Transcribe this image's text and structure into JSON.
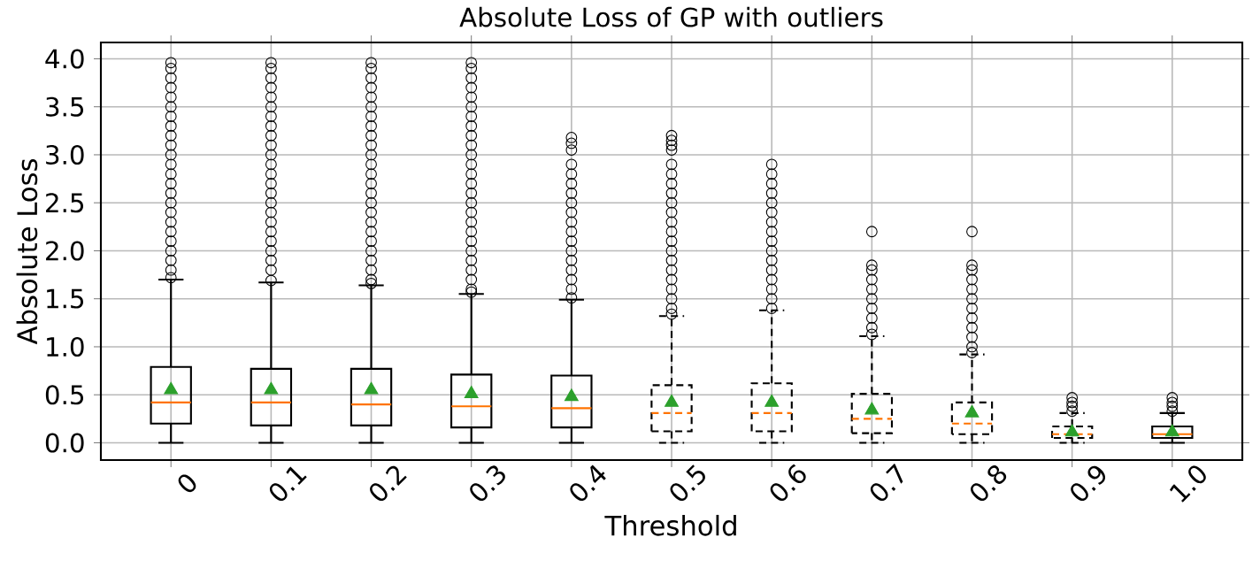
{
  "chart_data": {
    "type": "box",
    "title": "Absolute Loss of  GP with outliers",
    "xlabel": "Threshold",
    "ylabel": "Absolute  Loss",
    "categories": [
      "0",
      "0.1",
      "0.2",
      "0.3",
      "0.4",
      "0.5",
      "0.6",
      "0.7",
      "0.8",
      "0.9",
      "1.0"
    ],
    "boxes": [
      {
        "low": 0,
        "q1": 0.2,
        "median": 0.42,
        "q3": 0.79,
        "high": 1.7,
        "mean": 0.55,
        "outliers": [
          1.72,
          1.8,
          1.9,
          2.0,
          2.1,
          2.2,
          2.3,
          2.4,
          2.5,
          2.6,
          2.7,
          2.8,
          2.9,
          3.0,
          3.1,
          3.2,
          3.3,
          3.4,
          3.5,
          3.6,
          3.7,
          3.8,
          3.9,
          3.96
        ]
      },
      {
        "low": 0,
        "q1": 0.18,
        "median": 0.42,
        "q3": 0.77,
        "high": 1.67,
        "mean": 0.55,
        "outliers": [
          1.69,
          1.8,
          1.9,
          2.0,
          2.1,
          2.2,
          2.3,
          2.4,
          2.5,
          2.6,
          2.7,
          2.8,
          2.9,
          3.0,
          3.1,
          3.2,
          3.3,
          3.4,
          3.5,
          3.6,
          3.7,
          3.8,
          3.9,
          3.96
        ]
      },
      {
        "low": 0,
        "q1": 0.18,
        "median": 0.4,
        "q3": 0.77,
        "high": 1.64,
        "mean": 0.55,
        "outliers": [
          1.66,
          1.7,
          1.8,
          1.9,
          2.0,
          2.1,
          2.2,
          2.3,
          2.4,
          2.5,
          2.6,
          2.7,
          2.8,
          2.9,
          3.0,
          3.1,
          3.2,
          3.3,
          3.4,
          3.5,
          3.6,
          3.7,
          3.8,
          3.9,
          3.96
        ]
      },
      {
        "low": 0,
        "q1": 0.16,
        "median": 0.38,
        "q3": 0.71,
        "high": 1.55,
        "mean": 0.51,
        "outliers": [
          1.57,
          1.6,
          1.7,
          1.8,
          1.9,
          2.0,
          2.1,
          2.2,
          2.3,
          2.4,
          2.5,
          2.6,
          2.7,
          2.8,
          2.9,
          3.0,
          3.1,
          3.2,
          3.3,
          3.4,
          3.5,
          3.6,
          3.7,
          3.8,
          3.9,
          3.96
        ]
      },
      {
        "low": 0,
        "q1": 0.16,
        "median": 0.36,
        "q3": 0.7,
        "high": 1.49,
        "mean": 0.48,
        "outliers": [
          1.51,
          1.6,
          1.7,
          1.8,
          1.9,
          2.0,
          2.1,
          2.2,
          2.3,
          2.4,
          2.5,
          2.6,
          2.7,
          2.8,
          2.9,
          3.05,
          3.12,
          3.18
        ]
      },
      {
        "low": 0,
        "q1": 0.12,
        "median": 0.31,
        "q3": 0.6,
        "high": 1.32,
        "mean": 0.42,
        "outliers": [
          1.34,
          1.4,
          1.5,
          1.6,
          1.7,
          1.8,
          1.9,
          2.0,
          2.1,
          2.2,
          2.3,
          2.4,
          2.5,
          2.6,
          2.7,
          2.8,
          2.9,
          3.05,
          3.1,
          3.15,
          3.2
        ]
      },
      {
        "low": 0,
        "q1": 0.12,
        "median": 0.31,
        "q3": 0.62,
        "high": 1.38,
        "mean": 0.42,
        "outliers": [
          1.4,
          1.5,
          1.6,
          1.7,
          1.8,
          1.9,
          2.0,
          2.1,
          2.2,
          2.3,
          2.4,
          2.5,
          2.6,
          2.7,
          2.8,
          2.9
        ]
      },
      {
        "low": 0,
        "q1": 0.1,
        "median": 0.25,
        "q3": 0.51,
        "high": 1.11,
        "mean": 0.34,
        "outliers": [
          1.13,
          1.2,
          1.3,
          1.4,
          1.5,
          1.6,
          1.7,
          1.8,
          1.85,
          2.2
        ]
      },
      {
        "low": 0,
        "q1": 0.09,
        "median": 0.2,
        "q3": 0.42,
        "high": 0.92,
        "mean": 0.31,
        "outliers": [
          0.94,
          1.0,
          1.1,
          1.2,
          1.3,
          1.4,
          1.5,
          1.6,
          1.7,
          1.8,
          1.85,
          2.2
        ]
      },
      {
        "low": 0,
        "q1": 0.05,
        "median": 0.09,
        "q3": 0.17,
        "high": 0.31,
        "mean": 0.11,
        "outliers": [
          0.33,
          0.38,
          0.42,
          0.47
        ]
      },
      {
        "low": 0,
        "q1": 0.05,
        "median": 0.09,
        "q3": 0.17,
        "high": 0.31,
        "mean": 0.11,
        "outliers": [
          0.33,
          0.38,
          0.42,
          0.47
        ]
      }
    ],
    "ylim": [
      -0.18,
      4.17
    ],
    "yticks": [
      {
        "value": 0,
        "label": "0.0"
      },
      {
        "value": 0.5,
        "label": "0.5"
      },
      {
        "value": 1,
        "label": "1.0"
      },
      {
        "value": 1.5,
        "label": "1.5"
      },
      {
        "value": 2,
        "label": "2.0"
      },
      {
        "value": 2.5,
        "label": "2.5"
      },
      {
        "value": 3,
        "label": "3.0"
      },
      {
        "value": 3.5,
        "label": "3.5"
      },
      {
        "value": 4,
        "label": "4.0"
      }
    ],
    "grid": true,
    "marker": "triangle"
  }
}
